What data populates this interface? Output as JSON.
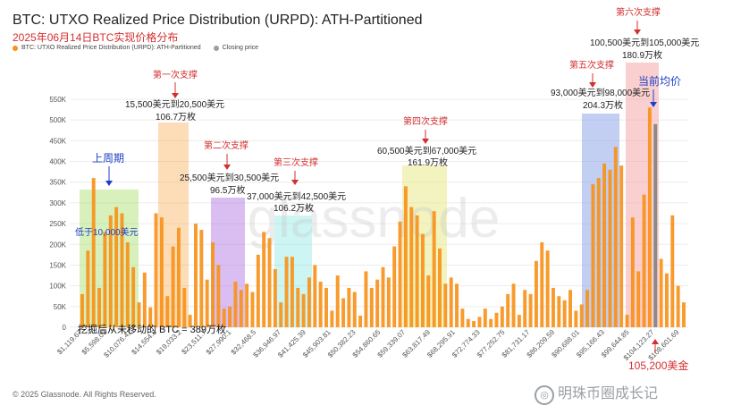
{
  "title": "BTC: UTXO Realized Price Distribution (URPD): ATH-Partitioned",
  "subtitle": "2025年06月14日BTC实现价格分布",
  "legend": [
    {
      "label": "BTC: UTXO Realized Price Distribution (URPD): ATH-Partitioned",
      "color": "#f7931a"
    },
    {
      "label": "Closing price",
      "color": "#9e9e9e"
    }
  ],
  "footer": "© 2025 Glassnode. All Rights Reserved.",
  "watermark": "glassnode",
  "brand": "明珠币圈成长记",
  "chart_data": {
    "type": "bar",
    "ylim": [
      0,
      550000
    ],
    "y_ticks": [
      "0",
      "50K",
      "100K",
      "150K",
      "200K",
      "250K",
      "300K",
      "350K",
      "400K",
      "450K",
      "500K",
      "550K"
    ],
    "x_tick_labels": [
      "$1,119.67",
      "$5,598.03",
      "$10,076.41",
      "$14,554.8",
      "$19,033.2",
      "$23,511.7",
      "$27,990.1",
      "$32,468.5",
      "$36,946.97",
      "$41,425.39",
      "$45,903.81",
      "$50,382.23",
      "$54,860.65",
      "$59,339.07",
      "$63,817.49",
      "$68,295.91",
      "$72,774.33",
      "$77,252.75",
      "$81,731.17",
      "$86,209.59",
      "$90,688.01",
      "$95,166.43",
      "$99,644.85",
      "$104,123.27",
      "$108,601.69"
    ],
    "values": [
      80000,
      185000,
      360000,
      95000,
      230000,
      270000,
      290000,
      275000,
      205000,
      145000,
      60000,
      132000,
      48000,
      275000,
      265000,
      75000,
      195000,
      240000,
      95000,
      30000,
      250000,
      235000,
      115000,
      205000,
      150000,
      45000,
      50000,
      110000,
      90000,
      105000,
      85000,
      175000,
      230000,
      215000,
      140000,
      60000,
      170000,
      170000,
      95000,
      80000,
      120000,
      150000,
      110000,
      95000,
      40000,
      125000,
      70000,
      95000,
      85000,
      28000,
      135000,
      95000,
      115000,
      145000,
      120000,
      195000,
      255000,
      340000,
      290000,
      270000,
      225000,
      125000,
      280000,
      190000,
      105000,
      120000,
      105000,
      45000,
      20000,
      15000,
      25000,
      45000,
      20000,
      35000,
      50000,
      80000,
      105000,
      30000,
      90000,
      80000,
      160000,
      205000,
      185000,
      95000,
      75000,
      65000,
      90000,
      40000,
      55000,
      90000,
      345000,
      360000,
      395000,
      380000,
      435000,
      390000,
      30000,
      265000,
      135000,
      320000,
      530000,
      490000,
      165000,
      130000,
      270000,
      100000,
      60000
    ],
    "highlight_indices": [
      101
    ],
    "annotations": {
      "prev_cycle": "上周期",
      "below_10k": "低于10,000美元",
      "support1_title": "第一次支撑",
      "support1_range": "15,500美元到20,500美元",
      "support1_amount": "106.7万枚",
      "support2_title": "第二次支撑",
      "support2_range": "25,500美元到30,500美元",
      "support2_amount": "96.5万枚",
      "support3_title": "第三次支撑",
      "support3_range": "37,000美元到42,500美元",
      "support3_amount": "106.2万枚",
      "support4_title": "第四次支撑",
      "support4_range": "60,500美元到67,000美元",
      "support4_amount": "161.9万枚",
      "support5_title": "第五次支撑",
      "support5_range": "93,000美元到98,000美元",
      "support5_amount": "204.3万枚",
      "support6_title": "第六次支撑",
      "support6_range": "100,500美元到105,000美元",
      "support6_amount": "180.9万枚",
      "current_avg": "当前均价",
      "current_price": "105,200美金",
      "mined_unmoved": "挖掘后从未移动的 BTC = 389万枚"
    }
  }
}
